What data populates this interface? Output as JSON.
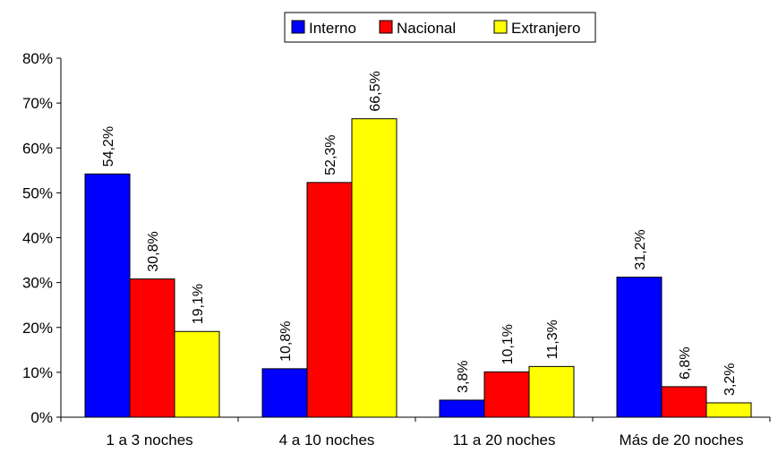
{
  "chart_data": {
    "type": "bar",
    "categories": [
      "1 a 3 noches",
      "4 a 10 noches",
      "11 a 20 noches",
      "Más de 20 noches"
    ],
    "series": [
      {
        "name": "Interno",
        "color": "#0000FF",
        "values": [
          54.2,
          10.8,
          3.8,
          31.2
        ],
        "labels": [
          "54,2%",
          "10,8%",
          "3,8%",
          "31,2%"
        ]
      },
      {
        "name": "Nacional",
        "color": "#FF0000",
        "values": [
          30.8,
          52.3,
          10.1,
          6.8
        ],
        "labels": [
          "30,8%",
          "52,3%",
          "10,1%",
          "6,8%"
        ]
      },
      {
        "name": "Extranjero",
        "color": "#FFFF00",
        "values": [
          19.1,
          66.5,
          11.3,
          3.2
        ],
        "labels": [
          "19,1%",
          "66,5%",
          "11,3%",
          "3,2%"
        ]
      }
    ],
    "ylim": [
      0,
      80
    ],
    "yticks": [
      0,
      10,
      20,
      30,
      40,
      50,
      60,
      70,
      80
    ],
    "ytick_labels": [
      "0%",
      "10%",
      "20%",
      "30%",
      "40%",
      "50%",
      "60%",
      "70%",
      "80%"
    ],
    "grid": false,
    "legend_position": "top-center",
    "title": "",
    "xlabel": "",
    "ylabel": ""
  }
}
